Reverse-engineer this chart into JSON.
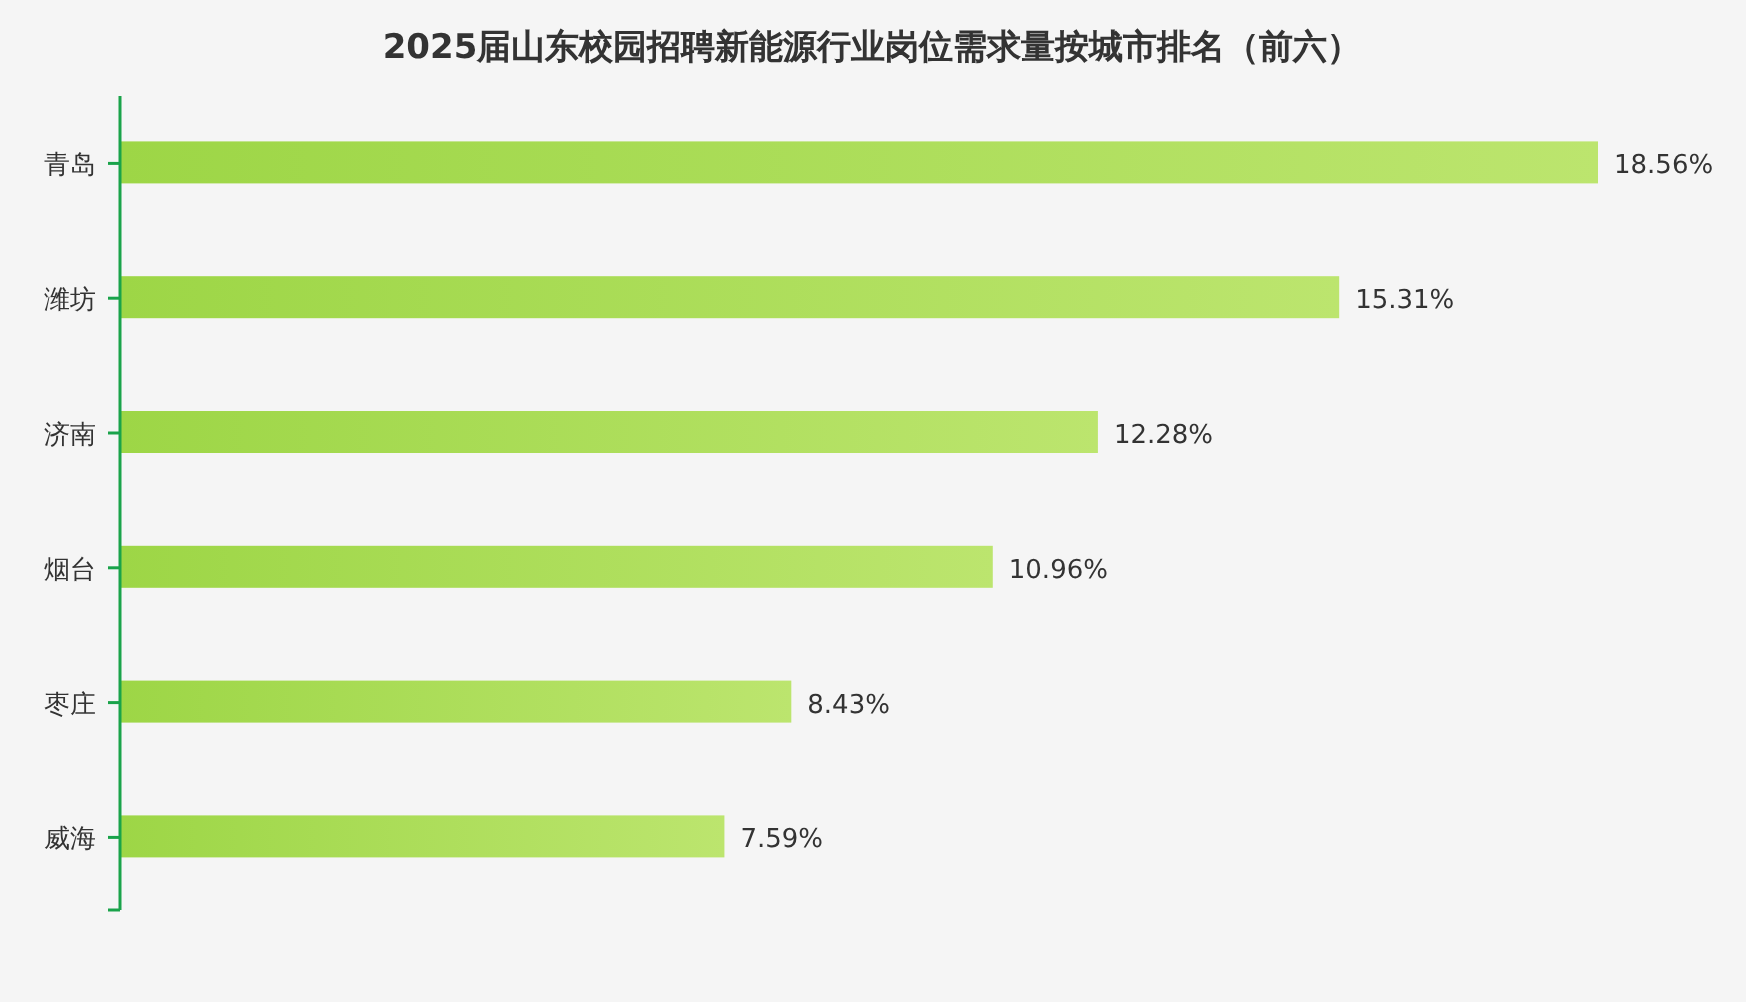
{
  "chart_data": {
    "type": "bar",
    "orientation": "horizontal",
    "title": "2025届山东校园招聘新能源行业岗位需求量按城市排名（前六）",
    "categories": [
      "青岛",
      "潍坊",
      "济南",
      "烟台",
      "枣庄",
      "威海"
    ],
    "values": [
      18.56,
      15.31,
      12.28,
      10.96,
      8.43,
      7.59
    ],
    "value_labels": [
      "18.56%",
      "15.31%",
      "12.28%",
      "10.96%",
      "8.43%",
      "7.59%"
    ],
    "color": "#acde58"
  }
}
